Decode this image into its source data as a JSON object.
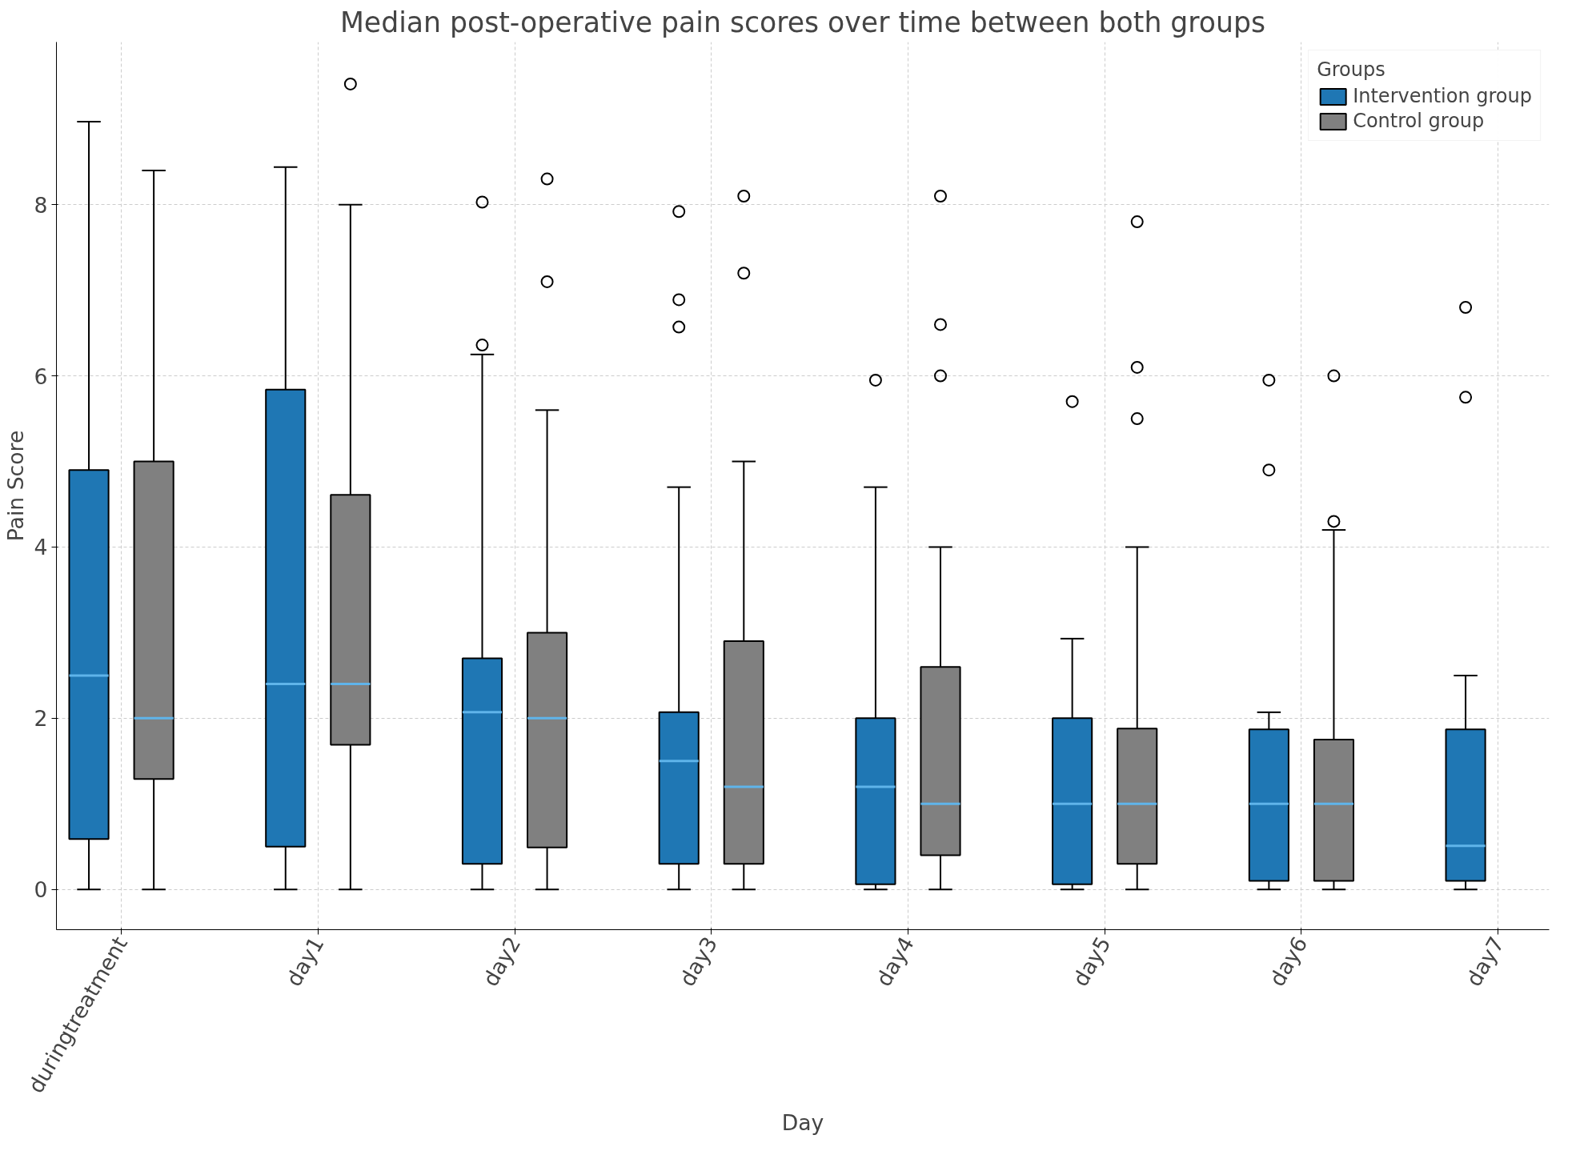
{
  "chart_data": {
    "type": "box",
    "title": "Median post-operative pain scores over time between both groups",
    "xlabel": "Day",
    "ylabel": "Pain Score",
    "legend_title": "Groups",
    "legend": "top right",
    "grid": true,
    "categories": [
      "duringtreatment",
      "day1",
      "day2",
      "day3",
      "day4",
      "day5",
      "day6",
      "day7"
    ],
    "ylim": [
      -0.47,
      9.9
    ],
    "yticks": [
      0,
      2,
      4,
      6,
      8
    ],
    "series": [
      {
        "name": "Intervention group",
        "color": "#1f77b4",
        "boxes": [
          {
            "low": 0,
            "q1": 0.59,
            "median": 2.5,
            "q3": 4.9,
            "high": 8.97
          },
          {
            "low": 0,
            "q1": 0.5,
            "median": 2.4,
            "q3": 5.84,
            "high": 8.44
          },
          {
            "low": 0,
            "q1": 0.3,
            "median": 2.07,
            "q3": 2.7,
            "high": 6.25,
            "outliers": [
              8.03,
              6.36
            ]
          },
          {
            "low": 0,
            "q1": 0.3,
            "median": 1.5,
            "q3": 2.07,
            "high": 4.7,
            "outliers": [
              7.92,
              6.89,
              6.57
            ]
          },
          {
            "low": 0,
            "q1": 0.06,
            "median": 1.2,
            "q3": 2.0,
            "high": 4.7,
            "outliers": [
              5.95
            ]
          },
          {
            "low": 0,
            "q1": 0.06,
            "median": 1.0,
            "q3": 2.0,
            "high": 2.93,
            "outliers": [
              5.7
            ]
          },
          {
            "low": 0,
            "q1": 0.1,
            "median": 1.0,
            "q3": 1.87,
            "high": 2.07,
            "outliers": [
              5.95,
              4.9
            ]
          },
          {
            "low": 0,
            "q1": 0.1,
            "median": 0.51,
            "q3": 1.87,
            "high": 2.5,
            "outliers": [
              6.8,
              5.75
            ]
          }
        ]
      },
      {
        "name": "Control group",
        "color": "#808080",
        "boxes": [
          {
            "low": 0,
            "q1": 1.29,
            "median": 2.0,
            "q3": 5.0,
            "high": 8.4
          },
          {
            "low": 0,
            "q1": 1.69,
            "median": 2.4,
            "q3": 4.61,
            "high": 8.0,
            "outliers": [
              9.41
            ]
          },
          {
            "low": 0,
            "q1": 0.49,
            "median": 2.0,
            "q3": 3.0,
            "high": 5.6,
            "outliers": [
              8.3,
              7.1
            ]
          },
          {
            "low": 0,
            "q1": 0.3,
            "median": 1.2,
            "q3": 2.9,
            "high": 5.0,
            "outliers": [
              8.1,
              7.2
            ]
          },
          {
            "low": 0,
            "q1": 0.4,
            "median": 1.0,
            "q3": 2.6,
            "high": 4.0,
            "outliers": [
              8.1,
              6.6,
              6.0
            ]
          },
          {
            "low": 0,
            "q1": 0.3,
            "median": 1.0,
            "q3": 1.88,
            "high": 4.0,
            "outliers": [
              7.8,
              6.1,
              5.5
            ]
          },
          {
            "low": 0,
            "q1": 0.1,
            "median": 1.0,
            "q3": 1.75,
            "high": 4.2,
            "outliers": [
              6.0,
              4.3
            ]
          },
          null
        ]
      }
    ]
  }
}
